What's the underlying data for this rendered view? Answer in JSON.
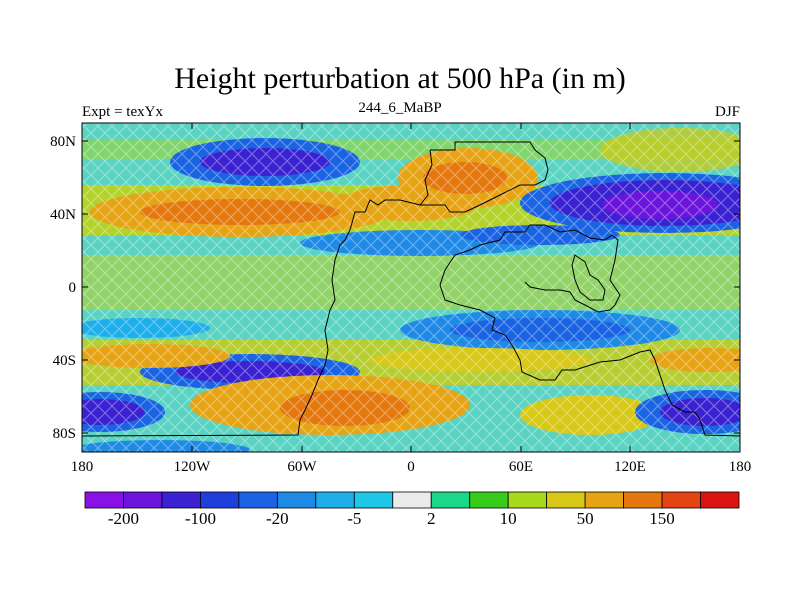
{
  "title": "Height perturbation at 500 hPa (in m)",
  "left_label": "Expt = texYx",
  "center_label": "244_6_MaBP",
  "right_label": "DJF",
  "x_ticks": [
    "180",
    "120W",
    "60W",
    "0",
    "60E",
    "120E",
    "180"
  ],
  "y_ticks": [
    "80N",
    "40N",
    "0",
    "40S",
    "80S"
  ],
  "colorbar": {
    "colors": [
      "#8a10e8",
      "#6a14dc",
      "#3a22d2",
      "#1e3fdc",
      "#1a64e4",
      "#1f8ae6",
      "#1eaeea",
      "#1ec8e6",
      "#ececec",
      "#19d88a",
      "#36cc1a",
      "#a8d81c",
      "#d8c818",
      "#e6a414",
      "#e4780e",
      "#e44412",
      "#dc1410"
    ],
    "labels": [
      "-200",
      "-100",
      "-20",
      "-5",
      "2",
      "10",
      "50",
      "150"
    ]
  }
}
